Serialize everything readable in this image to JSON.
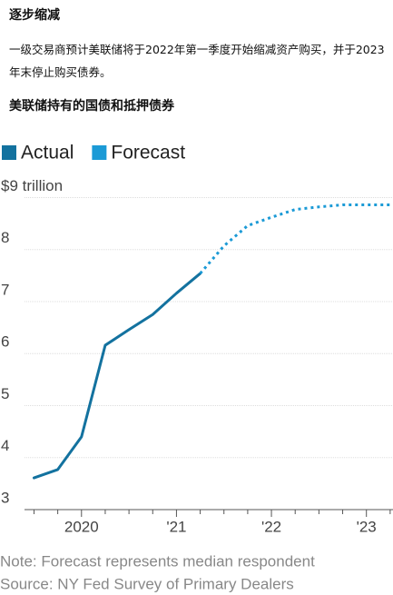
{
  "chart_data": {
    "type": "line",
    "header_title": "逐步缩减",
    "subtitle": "一级交易商预计美联储将于2022年第一季度开始缩减资产购买，并于2023年末停止购买债券。",
    "title": "美联储持有的国债和抵押债券",
    "series": [
      {
        "name": "Actual",
        "color": "#13729f",
        "style": "solid",
        "x": [
          2019.5,
          2019.75,
          2020.0,
          2020.25,
          2020.5,
          2020.75,
          2021.0,
          2021.25
        ],
        "values": [
          3.61,
          3.77,
          4.4,
          6.16,
          6.46,
          6.75,
          7.16,
          7.54
        ]
      },
      {
        "name": "Forecast",
        "color": "#1b9ad6",
        "style": "dotted",
        "x": [
          2021.25,
          2021.5,
          2021.75,
          2022.0,
          2022.25,
          2022.5,
          2022.75,
          2023.0,
          2023.25
        ],
        "values": [
          7.54,
          8.07,
          8.46,
          8.62,
          8.77,
          8.82,
          8.86,
          8.86,
          8.86
        ]
      }
    ],
    "xlim": [
      2019.4,
      2023.28
    ],
    "xticks": [
      {
        "value": 2020,
        "label": "2020"
      },
      {
        "value": 2021,
        "label": "'21"
      },
      {
        "value": 2022,
        "label": "'22"
      },
      {
        "value": 2023,
        "label": "'23"
      }
    ],
    "xminorticks": [
      2019.5,
      2019.75,
      2020.25,
      2020.5,
      2020.75,
      2021.25,
      2021.5,
      2021.75,
      2022.25,
      2022.5,
      2022.75,
      2023.25
    ],
    "ylim": [
      3,
      9.2
    ],
    "yticks": [
      3,
      4,
      5,
      6,
      7,
      8,
      {
        "value": 9,
        "label": "$9 trillion"
      }
    ],
    "grid": true,
    "legend": "top-left",
    "notes": [
      "Note: Forecast represents median respondent",
      "Source: NY Fed Survey of Primary Dealers"
    ]
  }
}
